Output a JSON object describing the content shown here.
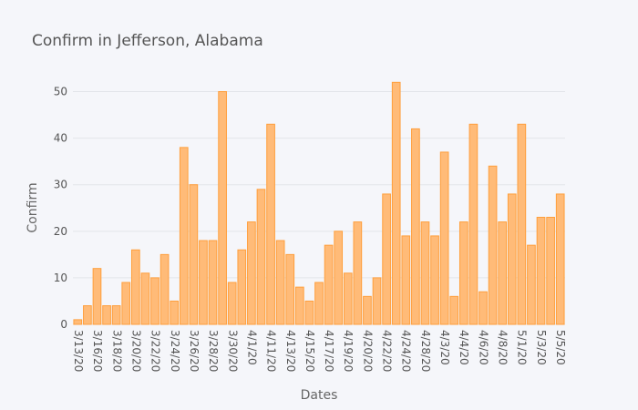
{
  "chart_data": {
    "type": "bar",
    "title": "Confirm in Jefferson, Alabama",
    "xlabel": "Dates",
    "ylabel": "Confirm",
    "ylim": [
      0,
      55
    ],
    "yticks": [
      0,
      10,
      20,
      30,
      40,
      50
    ],
    "grid": true,
    "legend": "none",
    "bar_color": "#ffbb78",
    "bar_edge_color": "#ff9f3c",
    "tick_labels": [
      "3/13/20",
      "3/16/20",
      "3/18/20",
      "3/20/20",
      "3/22/20",
      "3/24/20",
      "3/26/20",
      "3/28/20",
      "3/30/20",
      "4/1/20",
      "4/11/20",
      "4/13/20",
      "4/15/20",
      "4/17/20",
      "4/19/20",
      "4/20/20",
      "4/22/20",
      "4/24/20",
      "4/28/20",
      "4/3/20",
      "4/4/20",
      "4/6/20",
      "4/8/20",
      "5/1/20",
      "5/3/20",
      "5/5/20"
    ],
    "values": [
      1,
      4,
      12,
      4,
      4,
      9,
      16,
      11,
      10,
      15,
      5,
      38,
      30,
      18,
      18,
      50,
      9,
      16,
      22,
      29,
      43,
      18,
      15,
      8,
      5,
      9,
      17,
      20,
      11,
      22,
      6,
      10,
      28,
      52,
      19,
      42,
      22,
      19,
      37,
      6,
      22,
      43,
      7,
      34,
      22,
      28,
      43,
      17,
      23,
      23,
      28
    ]
  }
}
